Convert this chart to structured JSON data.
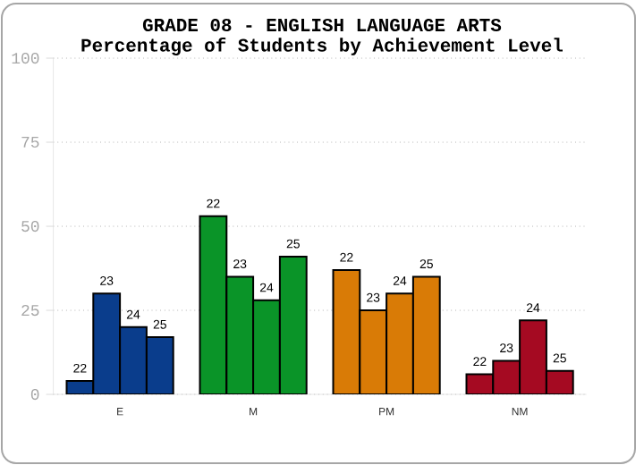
{
  "chart_data": {
    "type": "bar",
    "title": "GRADE 08 - ENGLISH LANGUAGE ARTS",
    "subtitle": "Percentage of Students by Achievement Level",
    "categories": [
      "E",
      "M",
      "PM",
      "NM"
    ],
    "series": [
      {
        "name": "22",
        "colors": [
          "#0a3d8c",
          "#0a9428",
          "#d97b06",
          "#a50a22"
        ],
        "values": [
          4,
          53,
          37,
          6
        ]
      },
      {
        "name": "23",
        "colors": [
          "#0a3d8c",
          "#0a9428",
          "#d97b06",
          "#a50a22"
        ],
        "values": [
          30,
          35,
          25,
          10
        ]
      },
      {
        "name": "24",
        "colors": [
          "#0a3d8c",
          "#0a9428",
          "#d97b06",
          "#a50a22"
        ],
        "values": [
          20,
          28,
          30,
          22
        ]
      },
      {
        "name": "25",
        "colors": [
          "#0a3d8c",
          "#0a9428",
          "#d97b06",
          "#a50a22"
        ],
        "values": [
          17,
          41,
          35,
          7
        ]
      }
    ],
    "ylim": [
      0,
      100
    ],
    "yticks": [
      0,
      25,
      50,
      75,
      100
    ],
    "grid": "y"
  }
}
